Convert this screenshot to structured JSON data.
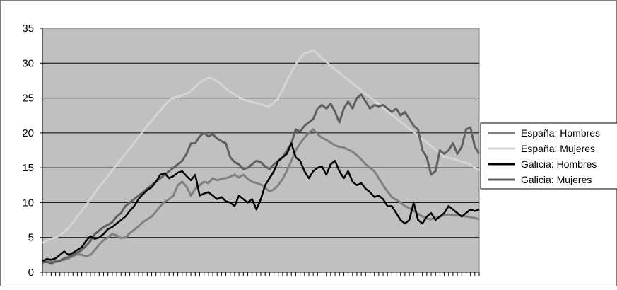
{
  "chart_data": {
    "type": "line",
    "title": "",
    "xlabel": "",
    "ylabel": "",
    "ylim": [
      0,
      35
    ],
    "yticks": [
      0,
      5,
      10,
      15,
      20,
      25,
      30,
      35
    ],
    "grid": true,
    "legend_position": "right",
    "plot_background": "#c0c0c0",
    "series": [
      {
        "name": "España: Hombres",
        "color": "#808080",
        "values": [
          1.5,
          1.6,
          1.5,
          1.6,
          1.7,
          1.8,
          2.0,
          2.3,
          2.6,
          2.5,
          2.3,
          2.5,
          3.2,
          4.0,
          4.6,
          5.0,
          5.5,
          5.3,
          4.9,
          5.0,
          5.6,
          6.1,
          6.6,
          7.2,
          7.6,
          8.0,
          8.7,
          9.5,
          10.1,
          10.5,
          11.0,
          12.5,
          13.0,
          12.3,
          11.0,
          12.0,
          12.5,
          13.0,
          12.8,
          13.5,
          13.2,
          13.4,
          13.5,
          13.7,
          14.0,
          13.6,
          14.0,
          13.4,
          13.0,
          12.8,
          12.6,
          12.1,
          11.6,
          11.9,
          12.5,
          13.4,
          14.6,
          16.0,
          17.5,
          18.5,
          19.3,
          20.0,
          20.5,
          19.8,
          19.3,
          19.0,
          18.6,
          18.2,
          18.0,
          17.9,
          17.6,
          17.3,
          16.8,
          16.2,
          15.5,
          15.0,
          14.5,
          13.5,
          12.5,
          11.6,
          10.8,
          10.4,
          10.0,
          9.5,
          9.2,
          8.8,
          8.4,
          8.0,
          7.7,
          7.6,
          7.8,
          8.0,
          8.2,
          8.3,
          8.2,
          8.2,
          8.1,
          8.0,
          7.9,
          7.8,
          7.6
        ]
      },
      {
        "name": "España: Mujeres",
        "color": "#d4d4d4",
        "values": [
          4.2,
          4.5,
          4.8,
          5.0,
          5.3,
          5.8,
          6.4,
          7.2,
          8.0,
          8.8,
          9.6,
          10.5,
          11.4,
          12.3,
          13.0,
          13.8,
          14.6,
          15.4,
          16.2,
          17.0,
          17.8,
          18.6,
          19.4,
          20.2,
          21.0,
          21.8,
          22.5,
          23.2,
          24.0,
          24.6,
          25.0,
          25.2,
          25.4,
          25.6,
          26.0,
          26.6,
          27.2,
          27.6,
          27.9,
          27.8,
          27.4,
          26.9,
          26.4,
          25.9,
          25.5,
          25.1,
          24.8,
          24.6,
          24.4,
          24.3,
          24.1,
          23.9,
          23.8,
          24.3,
          25.0,
          26.2,
          27.5,
          28.7,
          29.8,
          30.8,
          31.4,
          31.6,
          31.9,
          31.3,
          30.7,
          30.2,
          29.6,
          29.1,
          28.6,
          28.1,
          27.6,
          27.1,
          26.6,
          26.1,
          25.6,
          25.1,
          24.6,
          24.1,
          23.6,
          23.1,
          22.6,
          22.1,
          21.6,
          21.1,
          20.6,
          20.1,
          19.6,
          19.1,
          18.6,
          18.1,
          17.6,
          17.1,
          16.6,
          16.4,
          16.3,
          16.1,
          15.9,
          15.7,
          15.5,
          15.0,
          14.6
        ]
      },
      {
        "name": "Galicia: Hombres",
        "color": "#000000",
        "values": [
          1.6,
          1.9,
          1.8,
          2.0,
          2.5,
          3.0,
          2.5,
          2.8,
          3.2,
          3.6,
          4.5,
          5.2,
          4.8,
          5.0,
          5.5,
          6.2,
          6.5,
          7.0,
          7.5,
          8.0,
          8.8,
          9.5,
          10.5,
          11.2,
          11.8,
          12.2,
          13.0,
          14.0,
          14.2,
          13.5,
          13.8,
          14.3,
          14.5,
          13.8,
          13.2,
          14.0,
          11.0,
          11.3,
          11.5,
          11.0,
          10.5,
          10.8,
          10.2,
          10.0,
          9.5,
          11.0,
          10.5,
          10.0,
          10.5,
          9.0,
          10.5,
          12.5,
          13.5,
          14.5,
          16.0,
          16.5,
          17.0,
          18.5,
          16.5,
          16.0,
          14.5,
          13.5,
          14.5,
          15.0,
          15.2,
          14.0,
          15.5,
          16.0,
          14.5,
          13.5,
          14.5,
          13.0,
          12.5,
          12.8,
          12.0,
          11.5,
          10.8,
          11.0,
          10.5,
          9.5,
          9.5,
          8.5,
          7.5,
          7.0,
          7.5,
          10.0,
          7.5,
          7.0,
          8.0,
          8.5,
          7.5,
          8.0,
          8.5,
          9.5,
          9.0,
          8.5,
          8.0,
          8.5,
          9.0,
          8.8,
          9.0
        ]
      },
      {
        "name": "Galicia: Mujeres",
        "color": "#606060",
        "values": [
          1.4,
          1.5,
          1.3,
          1.5,
          1.6,
          2.0,
          2.2,
          2.5,
          2.8,
          3.2,
          3.8,
          4.5,
          5.5,
          6.0,
          6.5,
          6.8,
          7.2,
          8.0,
          8.5,
          9.5,
          10.0,
          10.5,
          11.0,
          11.5,
          12.0,
          12.5,
          13.0,
          13.5,
          14.0,
          14.5,
          15.0,
          15.5,
          16.0,
          17.0,
          18.5,
          18.5,
          19.5,
          20.0,
          19.5,
          19.8,
          19.2,
          18.8,
          18.5,
          16.5,
          15.8,
          15.5,
          14.8,
          15.0,
          15.5,
          16.0,
          15.8,
          15.2,
          14.8,
          15.5,
          16.0,
          16.5,
          17.5,
          18.5,
          20.5,
          20.2,
          21.0,
          21.5,
          22.0,
          23.5,
          24.0,
          23.5,
          24.2,
          23.0,
          21.5,
          23.5,
          24.5,
          23.5,
          25.0,
          25.5,
          24.5,
          23.5,
          24.0,
          23.8,
          24.0,
          23.5,
          23.0,
          23.5,
          22.5,
          23.0,
          22.0,
          21.0,
          20.5,
          17.5,
          16.5,
          14.0,
          14.5,
          17.5,
          17.0,
          17.5,
          18.5,
          17.0,
          18.0,
          20.5,
          20.8,
          18.0,
          17.0
        ]
      }
    ]
  }
}
